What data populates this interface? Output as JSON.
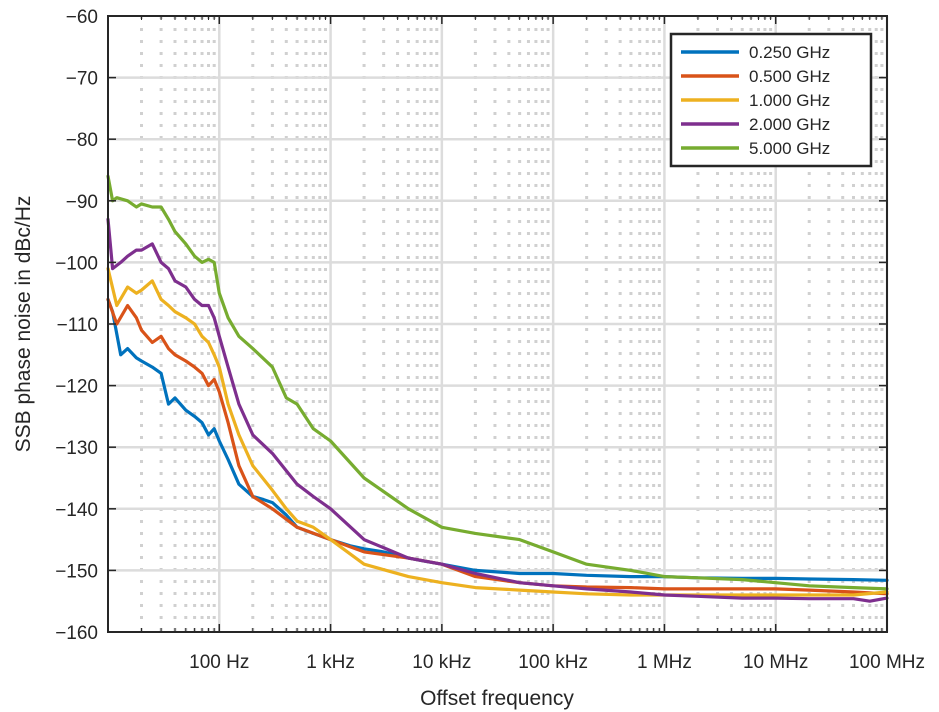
{
  "chart_data": {
    "type": "line",
    "xlabel": "Offset frequency",
    "ylabel": "SSB phase noise in dBc/Hz",
    "x_scale": "log",
    "xlim": [
      10,
      100000000
    ],
    "ylim": [
      -160,
      -60
    ],
    "x_ticks": [
      {
        "value": 100,
        "label": "100 Hz"
      },
      {
        "value": 1000,
        "label": "1 kHz"
      },
      {
        "value": 10000,
        "label": "10 kHz"
      },
      {
        "value": 100000,
        "label": "100 kHz"
      },
      {
        "value": 1000000,
        "label": "1 MHz"
      },
      {
        "value": 10000000,
        "label": "10 MHz"
      },
      {
        "value": 100000000,
        "label": "100 MHz"
      }
    ],
    "y_ticks": [
      {
        "value": -60,
        "label": "−60"
      },
      {
        "value": -70,
        "label": "−70"
      },
      {
        "value": -80,
        "label": "−80"
      },
      {
        "value": -90,
        "label": "−90"
      },
      {
        "value": -100,
        "label": "−100"
      },
      {
        "value": -110,
        "label": "−110"
      },
      {
        "value": -120,
        "label": "−120"
      },
      {
        "value": -130,
        "label": "−130"
      },
      {
        "value": -140,
        "label": "−140"
      },
      {
        "value": -150,
        "label": "−150"
      },
      {
        "value": -160,
        "label": "−160"
      }
    ],
    "grid": true,
    "minor_grid": true,
    "legend_position": "top-right",
    "series": [
      {
        "name": "0.250 GHz",
        "color": "#0072BD",
        "x": [
          10,
          11,
          13,
          15,
          18,
          20,
          25,
          30,
          35,
          40,
          50,
          60,
          70,
          80,
          90,
          100,
          120,
          150,
          200,
          250,
          300,
          400,
          500,
          700,
          1000,
          1500,
          2000,
          3000,
          5000,
          7000,
          10000,
          20000,
          50000,
          100000,
          200000,
          500000,
          1000000,
          2000000,
          5000000,
          10000000,
          20000000,
          50000000,
          100000000
        ],
        "y": [
          -106,
          -108,
          -115,
          -114,
          -115.5,
          -116,
          -117,
          -118,
          -123,
          -122,
          -124,
          -125,
          -126,
          -128,
          -127,
          -129,
          -132,
          -136,
          -138,
          -138.5,
          -139,
          -141,
          -143,
          -144,
          -145,
          -146,
          -146.5,
          -147,
          -148,
          -148.5,
          -149,
          -150,
          -150.5,
          -150.5,
          -150.8,
          -151,
          -151,
          -151.2,
          -151.3,
          -151.3,
          -151.4,
          -151.5,
          -151.6
        ]
      },
      {
        "name": "0.500 GHz",
        "color": "#D95319",
        "x": [
          10,
          12,
          15,
          18,
          20,
          25,
          30,
          35,
          40,
          50,
          60,
          70,
          80,
          90,
          100,
          120,
          150,
          200,
          300,
          500,
          1000,
          2000,
          5000,
          10000,
          20000,
          50000,
          100000,
          200000,
          500000,
          1000000,
          2000000,
          5000000,
          10000000,
          20000000,
          50000000,
          100000000
        ],
        "y": [
          -106,
          -110,
          -107,
          -109,
          -111,
          -113,
          -112,
          -114,
          -115,
          -116,
          -117,
          -118,
          -120,
          -119,
          -121,
          -126,
          -133,
          -138,
          -140,
          -143,
          -145,
          -147,
          -148,
          -149,
          -151,
          -152,
          -152.5,
          -152.7,
          -152.8,
          -153,
          -153,
          -153,
          -153,
          -153.2,
          -153.5,
          -153.8
        ]
      },
      {
        "name": "1.000 GHz",
        "color": "#EDB120",
        "x": [
          10,
          12,
          15,
          18,
          20,
          25,
          30,
          35,
          40,
          50,
          60,
          70,
          80,
          90,
          100,
          120,
          150,
          200,
          300,
          400,
          500,
          700,
          1000,
          2000,
          5000,
          10000,
          20000,
          50000,
          100000,
          200000,
          500000,
          1000000,
          2000000,
          5000000,
          10000000,
          20000000,
          50000000,
          100000000
        ],
        "y": [
          -101,
          -107,
          -104,
          -105,
          -104.5,
          -103,
          -106,
          -107,
          -108,
          -109,
          -110,
          -112,
          -113,
          -115,
          -117,
          -123,
          -128,
          -133,
          -137,
          -140,
          -142,
          -143,
          -145,
          -149,
          -151,
          -152,
          -152.8,
          -153.2,
          -153.5,
          -153.8,
          -154,
          -154,
          -154,
          -154,
          -154,
          -154,
          -154,
          -153.5
        ]
      },
      {
        "name": "2.000 GHz",
        "color": "#7E2F8E",
        "x": [
          10,
          11,
          13,
          15,
          18,
          20,
          25,
          30,
          35,
          40,
          50,
          60,
          70,
          80,
          90,
          100,
          120,
          150,
          200,
          300,
          500,
          700,
          1000,
          2000,
          5000,
          10000,
          20000,
          50000,
          100000,
          200000,
          500000,
          1000000,
          2000000,
          5000000,
          10000000,
          20000000,
          50000000,
          70000000,
          100000000
        ],
        "y": [
          -93,
          -101,
          -100,
          -99,
          -98,
          -98,
          -97,
          -100,
          -101,
          -103,
          -104,
          -106,
          -107,
          -107,
          -109,
          -112,
          -117,
          -123,
          -128,
          -131,
          -136,
          -138,
          -140,
          -145,
          -148,
          -149,
          -150.5,
          -152,
          -152.5,
          -153,
          -153.5,
          -154,
          -154.2,
          -154.5,
          -154.5,
          -154.6,
          -154.6,
          -155,
          -154.5
        ]
      },
      {
        "name": "5.000 GHz",
        "color": "#77AC30",
        "x": [
          10,
          11,
          12,
          15,
          18,
          20,
          25,
          30,
          35,
          40,
          50,
          60,
          70,
          80,
          90,
          100,
          120,
          150,
          200,
          300,
          400,
          500,
          700,
          1000,
          2000,
          5000,
          10000,
          20000,
          50000,
          100000,
          200000,
          500000,
          1000000,
          2000000,
          5000000,
          10000000,
          20000000,
          50000000,
          100000000
        ],
        "y": [
          -86,
          -90,
          -89.5,
          -90,
          -91,
          -90.5,
          -91,
          -91,
          -93,
          -95,
          -97,
          -99,
          -100,
          -99.5,
          -100,
          -105,
          -109,
          -112,
          -114,
          -117,
          -122,
          -123,
          -127,
          -129,
          -135,
          -140,
          -143,
          -144,
          -145,
          -147,
          -149,
          -150,
          -151,
          -151.2,
          -151.5,
          -152,
          -152.5,
          -152.8,
          -153
        ]
      }
    ]
  }
}
